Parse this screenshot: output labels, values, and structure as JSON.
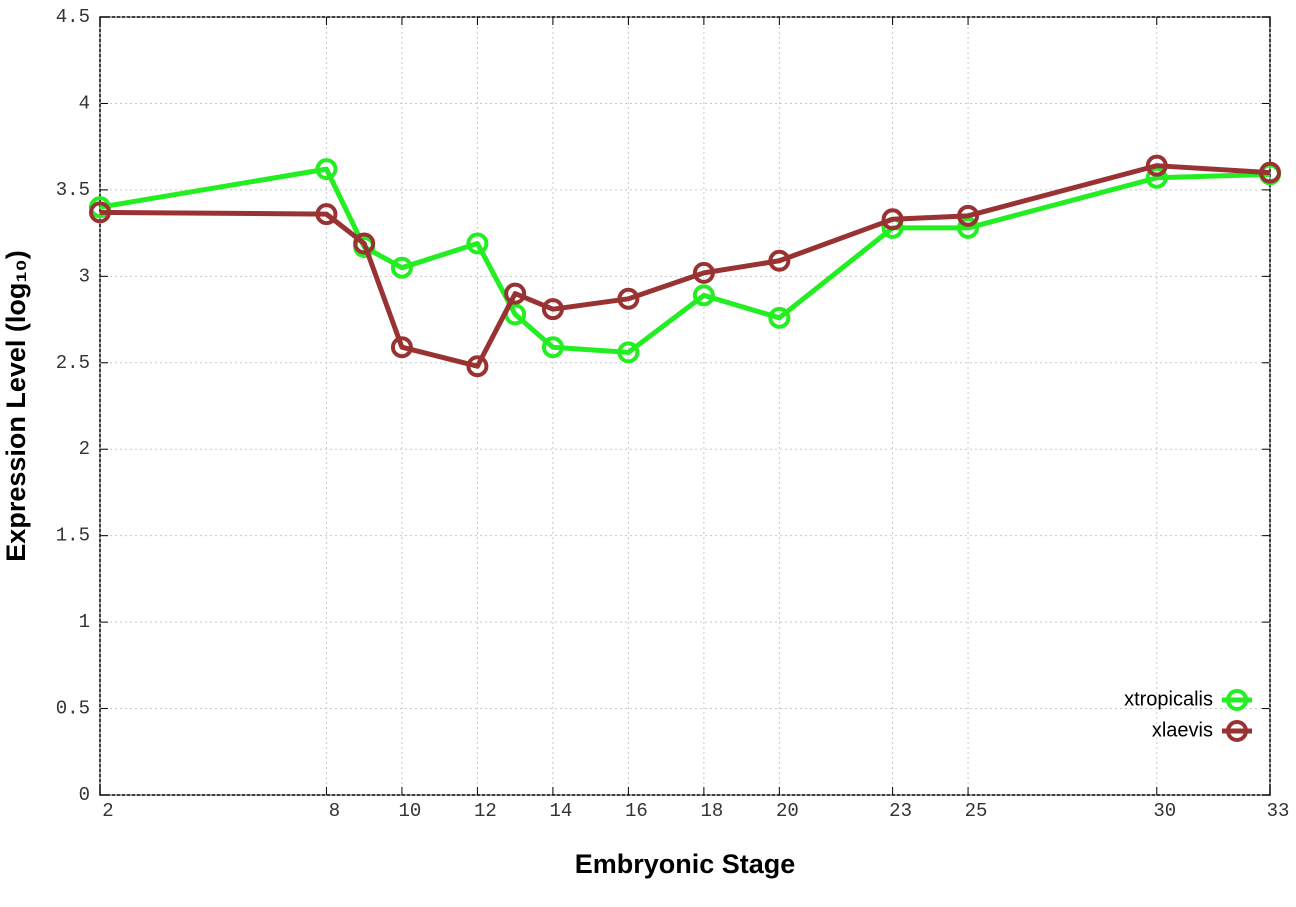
{
  "chart_data": {
    "type": "line",
    "x_label": "Embryonic Stage",
    "y_label": "Expression Level (log₁₀)",
    "x": [
      2,
      8,
      9,
      10,
      12,
      13,
      14,
      16,
      18,
      20,
      23,
      25,
      30,
      33
    ],
    "series": [
      {
        "name": "xtropicalis",
        "color": "#22ee22",
        "values": [
          3.4,
          3.62,
          3.17,
          3.05,
          3.19,
          2.78,
          2.59,
          2.56,
          2.89,
          2.76,
          3.28,
          3.28,
          3.57,
          3.59
        ]
      },
      {
        "name": "xlaevis",
        "color": "#993333",
        "values": [
          3.37,
          3.36,
          3.19,
          2.59,
          2.48,
          2.9,
          2.81,
          2.87,
          3.02,
          3.09,
          3.33,
          3.35,
          3.64,
          3.6
        ]
      }
    ],
    "xlim": [
      2,
      33
    ],
    "xticks": [
      2,
      8,
      10,
      12,
      14,
      16,
      18,
      20,
      23,
      25,
      30,
      33
    ],
    "ylim": [
      0,
      4.5
    ],
    "yticks": [
      0,
      0.5,
      1,
      1.5,
      2,
      2.5,
      3,
      3.5,
      4,
      4.5
    ],
    "grid": true,
    "legend": "lower right"
  }
}
